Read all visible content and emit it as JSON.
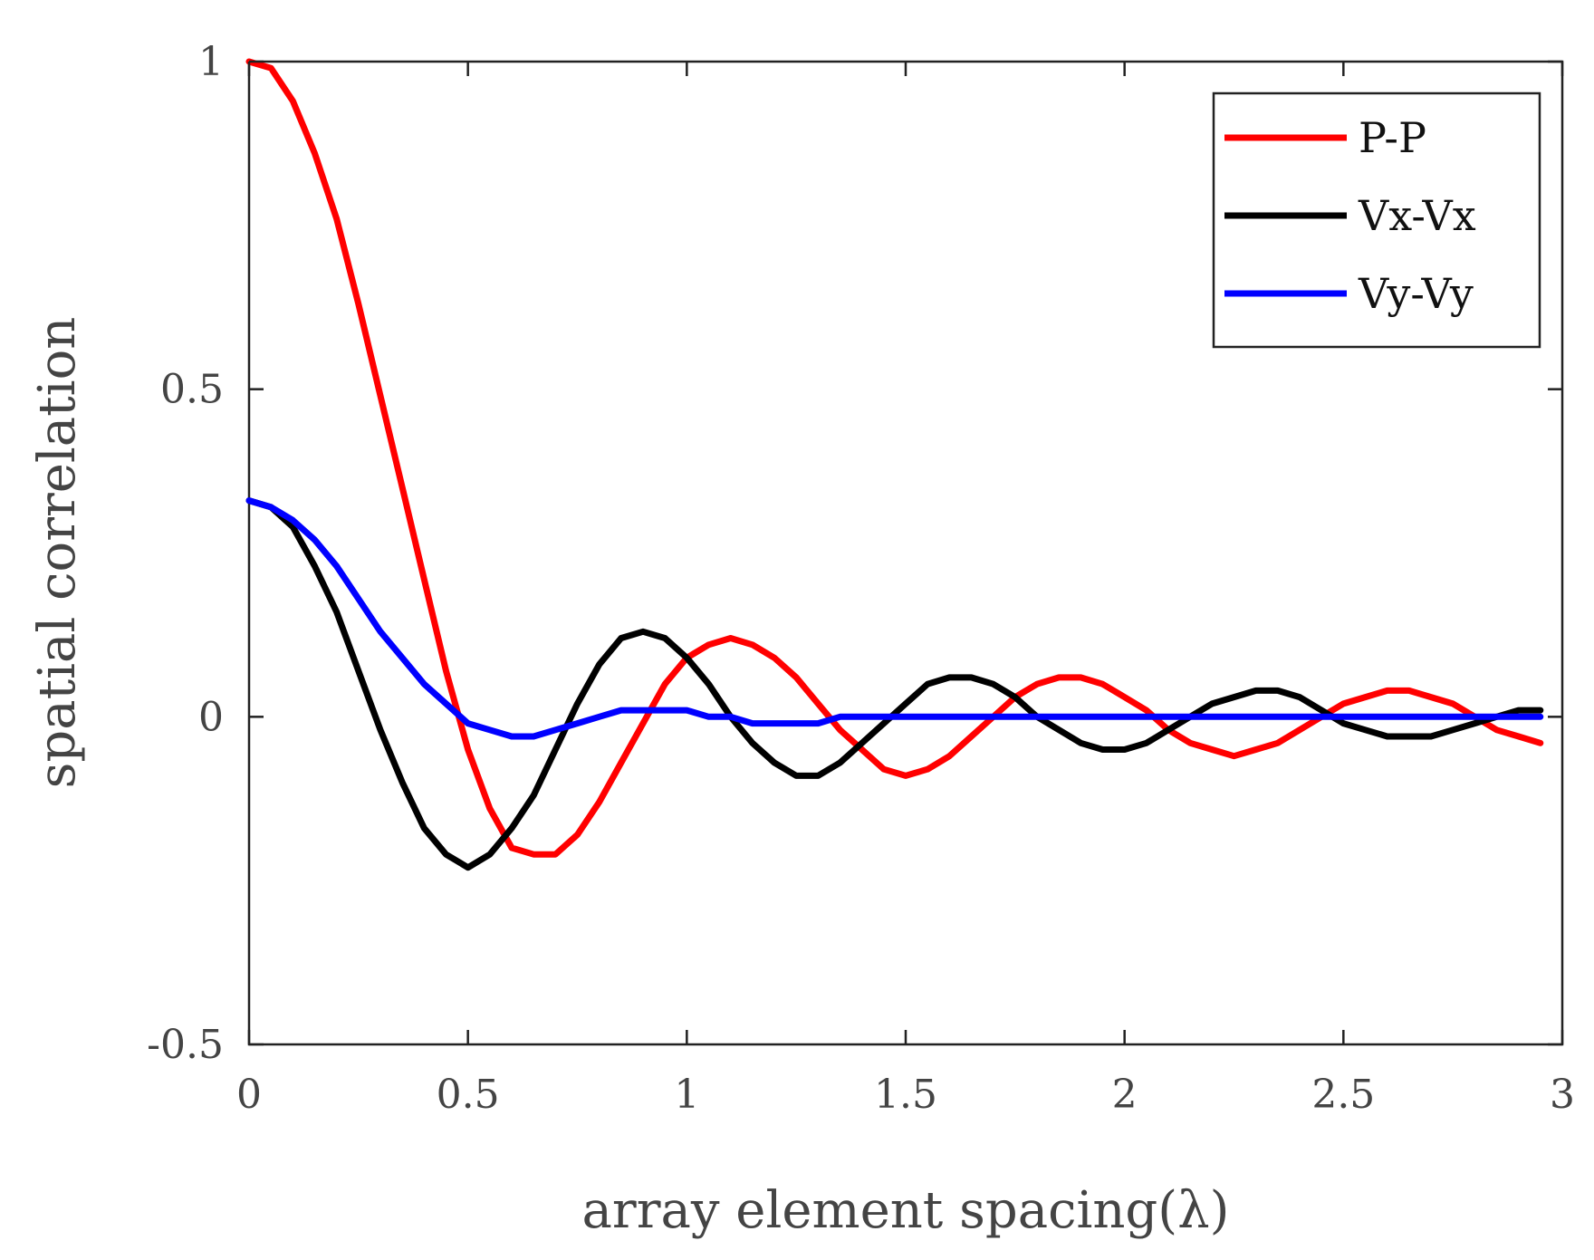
{
  "chart_data": {
    "type": "line",
    "title": "",
    "xlabel": "array element spacing(λ)",
    "ylabel": "spatial correlation",
    "xlim": [
      0,
      3
    ],
    "ylim": [
      -0.5,
      1
    ],
    "xticks": [
      0,
      0.5,
      1,
      1.5,
      2,
      2.5,
      3
    ],
    "xtick_labels": [
      "0",
      "0.5",
      "1",
      "1.5",
      "2",
      "2.5",
      "3"
    ],
    "yticks": [
      -0.5,
      0,
      0.5,
      1
    ],
    "ytick_labels": [
      "-0.5",
      "0",
      "0.5",
      "1"
    ],
    "grid": false,
    "legend_position": "top-right",
    "x": [
      0,
      0.05,
      0.1,
      0.15,
      0.2,
      0.25,
      0.3,
      0.35,
      0.4,
      0.45,
      0.5,
      0.55,
      0.6,
      0.65,
      0.7,
      0.75,
      0.8,
      0.85,
      0.9,
      0.95,
      1.0,
      1.05,
      1.1,
      1.15,
      1.2,
      1.25,
      1.3,
      1.35,
      1.4,
      1.45,
      1.5,
      1.55,
      1.6,
      1.65,
      1.7,
      1.75,
      1.8,
      1.85,
      1.9,
      1.95,
      2.0,
      2.05,
      2.1,
      2.15,
      2.2,
      2.25,
      2.3,
      2.35,
      2.4,
      2.45,
      2.5,
      2.55,
      2.6,
      2.65,
      2.7,
      2.75,
      2.8,
      2.85,
      2.9,
      2.95
    ],
    "series": [
      {
        "name": "P-P",
        "color": "#ff0000",
        "values": [
          1.0,
          0.99,
          0.94,
          0.86,
          0.76,
          0.63,
          0.49,
          0.35,
          0.21,
          0.07,
          -0.05,
          -0.14,
          -0.2,
          -0.21,
          -0.21,
          -0.18,
          -0.13,
          -0.07,
          -0.01,
          0.05,
          0.09,
          0.11,
          0.12,
          0.11,
          0.09,
          0.06,
          0.02,
          -0.02,
          -0.05,
          -0.08,
          -0.09,
          -0.08,
          -0.06,
          -0.03,
          0.0,
          0.03,
          0.05,
          0.06,
          0.06,
          0.05,
          0.03,
          0.01,
          -0.02,
          -0.04,
          -0.05,
          -0.06,
          -0.05,
          -0.04,
          -0.02,
          0.0,
          0.02,
          0.03,
          0.04,
          0.04,
          0.03,
          0.02,
          0.0,
          -0.02,
          -0.03,
          -0.04
        ]
      },
      {
        "name": "Vx-Vx",
        "color": "#000000",
        "values": [
          0.33,
          0.32,
          0.29,
          0.23,
          0.16,
          0.07,
          -0.02,
          -0.1,
          -0.17,
          -0.21,
          -0.23,
          -0.21,
          -0.17,
          -0.12,
          -0.05,
          0.02,
          0.08,
          0.12,
          0.13,
          0.12,
          0.09,
          0.05,
          0.0,
          -0.04,
          -0.07,
          -0.09,
          -0.09,
          -0.07,
          -0.04,
          -0.01,
          0.02,
          0.05,
          0.06,
          0.06,
          0.05,
          0.03,
          0.0,
          -0.02,
          -0.04,
          -0.05,
          -0.05,
          -0.04,
          -0.02,
          0.0,
          0.02,
          0.03,
          0.04,
          0.04,
          0.03,
          0.01,
          -0.01,
          -0.02,
          -0.03,
          -0.03,
          -0.03,
          -0.02,
          -0.01,
          0.0,
          0.01,
          0.01
        ]
      },
      {
        "name": "Vy-Vy",
        "color": "#0000ff",
        "values": [
          0.33,
          0.32,
          0.3,
          0.27,
          0.23,
          0.18,
          0.13,
          0.09,
          0.05,
          0.02,
          -0.01,
          -0.02,
          -0.03,
          -0.03,
          -0.02,
          -0.01,
          0.0,
          0.01,
          0.01,
          0.01,
          0.01,
          0.0,
          0.0,
          -0.01,
          -0.01,
          -0.01,
          -0.01,
          0.0,
          0.0,
          0.0,
          0.0,
          0.0,
          0.0,
          0.0,
          0.0,
          0.0,
          0.0,
          0.0,
          0.0,
          0.0,
          0.0,
          0.0,
          0.0,
          0.0,
          0.0,
          0.0,
          0.0,
          0.0,
          0.0,
          0.0,
          0.0,
          0.0,
          0.0,
          0.0,
          0.0,
          0.0,
          0.0,
          0.0,
          0.0,
          0.0
        ]
      }
    ]
  }
}
